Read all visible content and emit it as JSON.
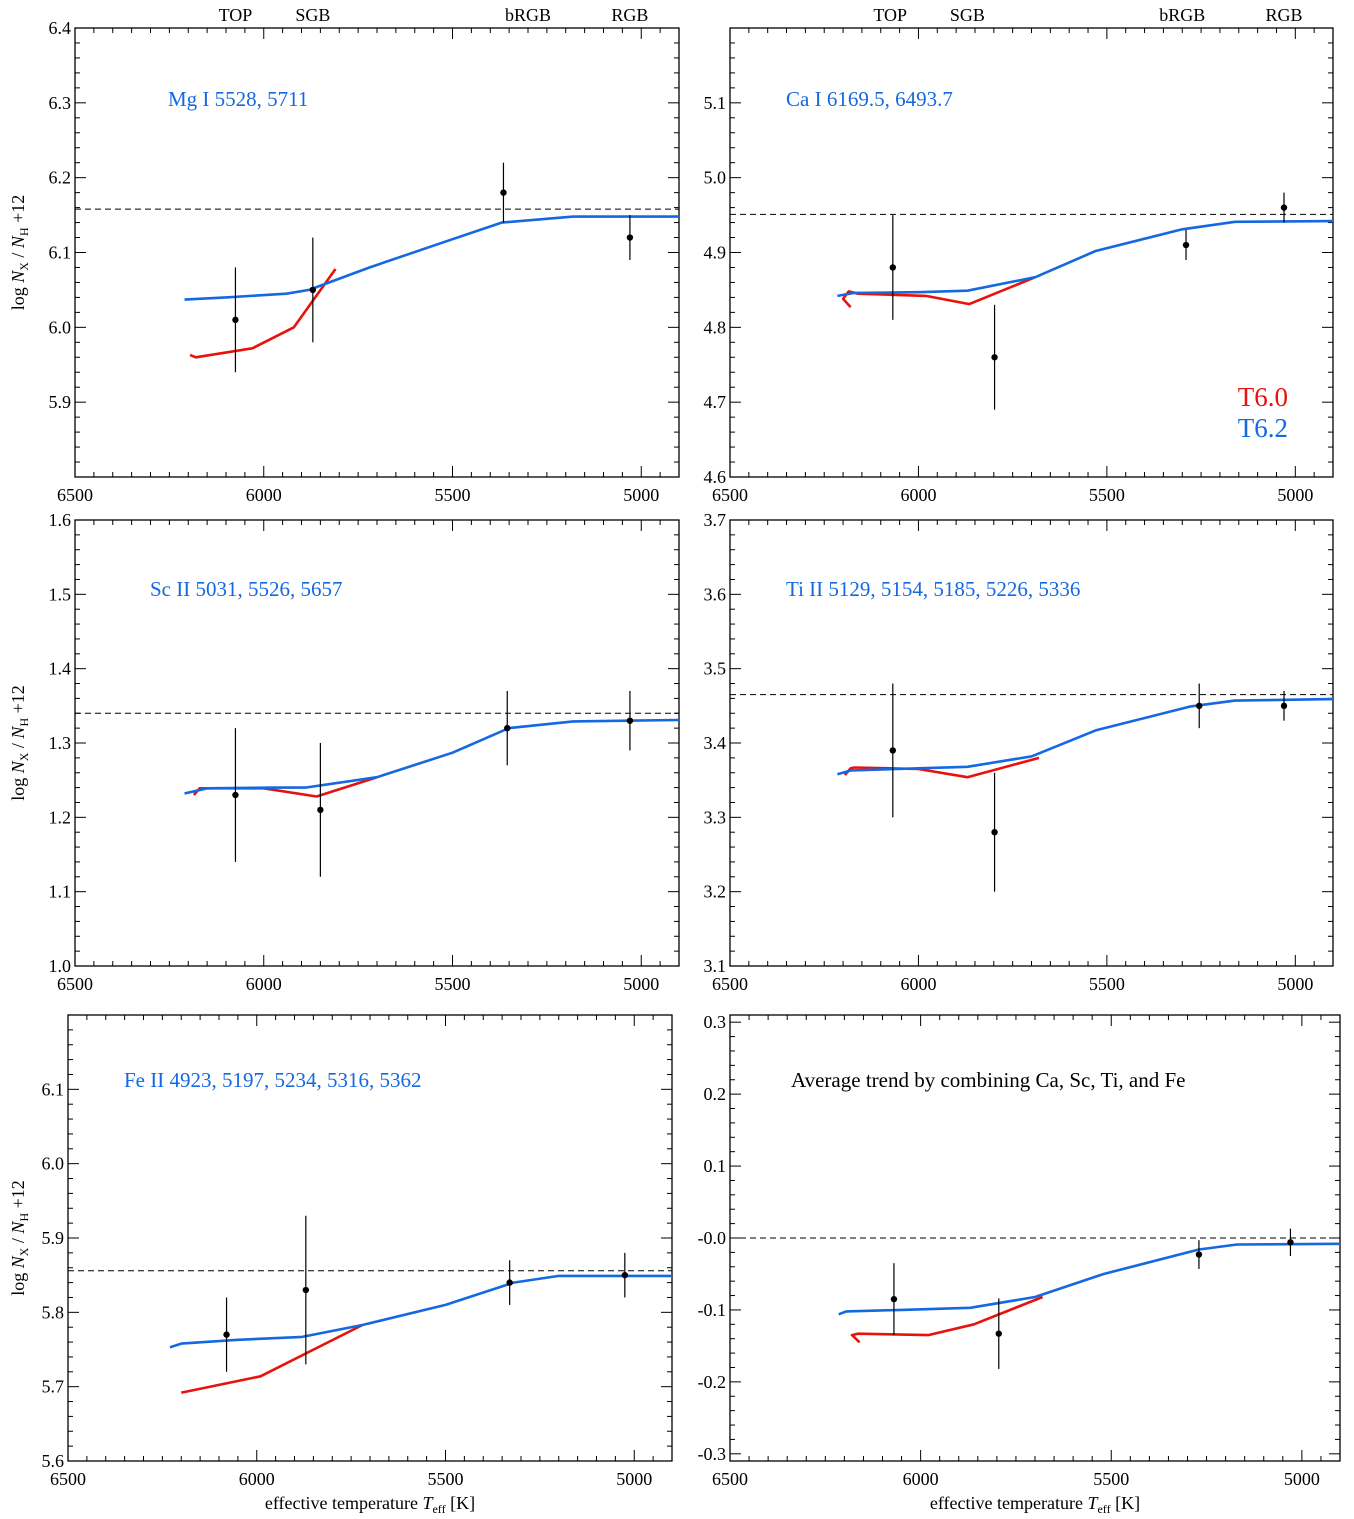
{
  "colors": {
    "red": "#e8120c",
    "blue": "#1468e0",
    "title_blue": "#1468e0",
    "black": "#000000"
  },
  "stage_labels": [
    "TOP",
    "SGB",
    "bRGB",
    "RGB"
  ],
  "xlabel": {
    "main": "effective temperature ",
    "var": "T",
    "sub": "eff",
    "unit": "  [K]"
  },
  "ylabel": {
    "pre": "log ",
    "N": "N",
    "X": "X",
    "slash": " / ",
    "H": "H",
    "post": " +12"
  },
  "legend": [
    {
      "label": "T6.0",
      "color": "#e8120c"
    },
    {
      "label": "T6.2",
      "color": "#1468e0"
    }
  ],
  "chart_data": [
    {
      "type": "line",
      "title": "Mg I 5528, 5711",
      "title_color": "#1468e0",
      "xlim": [
        6500,
        4900
      ],
      "x_ticks": [
        6500,
        6000,
        5500,
        5000
      ],
      "ylim": [
        5.8,
        6.4
      ],
      "y_ticks": [
        5.9,
        6.0,
        6.1,
        6.2,
        6.3,
        6.4
      ],
      "y_tick_labels": [
        "5.9",
        "6.0",
        "6.1",
        "6.2",
        "6.3",
        "6.4"
      ],
      "reference_line": 6.158,
      "show_ylabel": true,
      "series": [
        {
          "color": "#e8120c",
          "x": [
            6195,
            6180,
            6030,
            5920,
            5810
          ],
          "y": [
            5.963,
            5.96,
            5.972,
            6.0,
            6.078
          ]
        },
        {
          "color": "#1468e0",
          "x": [
            6210,
            6100,
            5940,
            5880,
            5720,
            5540,
            5370,
            5180,
            4900
          ],
          "y": [
            6.037,
            6.04,
            6.045,
            6.05,
            6.08,
            6.111,
            6.14,
            6.148,
            6.148
          ]
        }
      ],
      "points": [
        {
          "x": 6075,
          "y": 6.01,
          "err": 0.07
        },
        {
          "x": 5870,
          "y": 6.05,
          "err": 0.07
        },
        {
          "x": 5365,
          "y": 6.18,
          "err": 0.04
        },
        {
          "x": 5030,
          "y": 6.12,
          "err": 0.03
        }
      ]
    },
    {
      "type": "line",
      "title": "Ca I 6169.5, 6493.7",
      "title_color": "#1468e0",
      "xlim": [
        6500,
        4900
      ],
      "x_ticks": [
        6500,
        6000,
        5500,
        5000
      ],
      "ylim": [
        4.6,
        5.2
      ],
      "y_ticks": [
        4.6,
        4.7,
        4.8,
        4.9,
        5.0,
        5.1
      ],
      "y_tick_labels": [
        "4.6",
        "4.7",
        "4.8",
        "4.9",
        "5.0",
        "5.1"
      ],
      "reference_line": 4.951,
      "show_ylabel": false,
      "legend": true,
      "series": [
        {
          "color": "#e8120c",
          "x": [
            6180,
            6200,
            6185,
            6160,
            5980,
            5865,
            5690
          ],
          "y": [
            4.827,
            4.838,
            4.848,
            4.845,
            4.842,
            4.831,
            4.867
          ]
        },
        {
          "color": "#1468e0",
          "x": [
            6215,
            6170,
            6000,
            5870,
            5690,
            5530,
            5300,
            5160,
            4900
          ],
          "y": [
            4.842,
            4.846,
            4.847,
            4.849,
            4.867,
            4.902,
            4.931,
            4.941,
            4.942
          ]
        }
      ],
      "points": [
        {
          "x": 6068,
          "y": 4.88,
          "err": 0.07
        },
        {
          "x": 5798,
          "y": 4.76,
          "err": 0.07
        },
        {
          "x": 5290,
          "y": 4.91,
          "err": 0.02
        },
        {
          "x": 5030,
          "y": 4.96,
          "err": 0.02
        }
      ]
    },
    {
      "type": "line",
      "title": "Sc II 5031, 5526, 5657",
      "title_color": "#1468e0",
      "xlim": [
        6500,
        4900
      ],
      "x_ticks": [
        6500,
        6000,
        5500,
        5000
      ],
      "ylim": [
        1.0,
        1.6
      ],
      "y_ticks": [
        1.0,
        1.1,
        1.2,
        1.3,
        1.4,
        1.5,
        1.6
      ],
      "y_tick_labels": [
        "1.0",
        "1.1",
        "1.2",
        "1.3",
        "1.4",
        "1.5",
        "1.6"
      ],
      "reference_line": 1.34,
      "show_ylabel": true,
      "series": [
        {
          "color": "#e8120c",
          "x": [
            6185,
            6170,
            6000,
            5860,
            5700
          ],
          "y": [
            1.23,
            1.239,
            1.239,
            1.228,
            1.254
          ]
        },
        {
          "color": "#1468e0",
          "x": [
            6210,
            6150,
            5970,
            5890,
            5700,
            5500,
            5350,
            5180,
            4900
          ],
          "y": [
            1.232,
            1.239,
            1.24,
            1.24,
            1.254,
            1.287,
            1.32,
            1.329,
            1.331
          ]
        }
      ],
      "points": [
        {
          "x": 6075,
          "y": 1.23,
          "err": 0.09
        },
        {
          "x": 5850,
          "y": 1.21,
          "err": 0.09
        },
        {
          "x": 5355,
          "y": 1.32,
          "err": 0.05
        },
        {
          "x": 5030,
          "y": 1.33,
          "err": 0.04
        }
      ]
    },
    {
      "type": "line",
      "title": "Ti II 5129, 5154, 5185, 5226, 5336",
      "title_color": "#1468e0",
      "xlim": [
        6500,
        4900
      ],
      "x_ticks": [
        6500,
        6000,
        5500,
        5000
      ],
      "ylim": [
        3.1,
        3.7
      ],
      "y_ticks": [
        3.1,
        3.2,
        3.3,
        3.4,
        3.5,
        3.6,
        3.7
      ],
      "y_tick_labels": [
        "3.1",
        "3.2",
        "3.3",
        "3.4",
        "3.5",
        "3.6",
        "3.7"
      ],
      "reference_line": 3.465,
      "show_ylabel": false,
      "series": [
        {
          "color": "#e8120c",
          "x": [
            6195,
            6180,
            6170,
            6000,
            5870,
            5680
          ],
          "y": [
            3.357,
            3.366,
            3.367,
            3.365,
            3.354,
            3.38
          ]
        },
        {
          "color": "#1468e0",
          "x": [
            6215,
            6180,
            6000,
            5870,
            5700,
            5530,
            5280,
            5160,
            4900
          ],
          "y": [
            3.358,
            3.363,
            3.366,
            3.368,
            3.382,
            3.417,
            3.449,
            3.457,
            3.459
          ]
        }
      ],
      "points": [
        {
          "x": 6068,
          "y": 3.39,
          "err": 0.09
        },
        {
          "x": 5798,
          "y": 3.28,
          "err": 0.08
        },
        {
          "x": 5255,
          "y": 3.45,
          "err": 0.03
        },
        {
          "x": 5030,
          "y": 3.45,
          "err": 0.02
        }
      ]
    },
    {
      "type": "line",
      "title": "Fe II 4923, 5197, 5234, 5316, 5362",
      "title_color": "#1468e0",
      "xlim": [
        6500,
        4900
      ],
      "x_ticks": [
        6500,
        6000,
        5500,
        5000
      ],
      "ylim": [
        5.6,
        6.2
      ],
      "y_ticks": [
        5.6,
        5.7,
        5.8,
        5.9,
        6.0,
        6.1
      ],
      "y_tick_labels": [
        "5.6",
        "5.7",
        "5.8",
        "5.9",
        "6.0",
        "6.1"
      ],
      "reference_line": 5.856,
      "show_ylabel": true,
      "series": [
        {
          "color": "#e8120c",
          "x": [
            6200,
            6180,
            5990,
            5720
          ],
          "y": [
            5.692,
            5.694,
            5.714,
            5.783
          ]
        },
        {
          "color": "#1468e0",
          "x": [
            6230,
            6200,
            6050,
            5880,
            5720,
            5500,
            5320,
            5200,
            4900
          ],
          "y": [
            5.753,
            5.758,
            5.763,
            5.767,
            5.783,
            5.81,
            5.84,
            5.849,
            5.849
          ]
        }
      ],
      "points": [
        {
          "x": 6080,
          "y": 5.77,
          "err": 0.05
        },
        {
          "x": 5870,
          "y": 5.83,
          "err": 0.1
        },
        {
          "x": 5330,
          "y": 5.84,
          "err": 0.03
        },
        {
          "x": 5025,
          "y": 5.85,
          "err": 0.03
        }
      ]
    },
    {
      "type": "line",
      "title": "Average trend by combining Ca, Sc, Ti, and Fe",
      "title_color": "#000000",
      "xlim": [
        6500,
        4900
      ],
      "x_ticks": [
        6500,
        6000,
        5500,
        5000
      ],
      "ylim": [
        -0.31,
        0.31
      ],
      "y_ticks": [
        -0.3,
        -0.2,
        -0.1,
        0.0,
        0.1,
        0.2,
        0.3
      ],
      "y_tick_labels": [
        "-0.3",
        "-0.2",
        "-0.1",
        "-0.0",
        "0.1",
        "0.2",
        "0.3"
      ],
      "reference_line": 0.0,
      "show_ylabel": false,
      "series": [
        {
          "color": "#e8120c",
          "x": [
            6160,
            6180,
            6165,
            5980,
            5860,
            5680
          ],
          "y": [
            -0.145,
            -0.135,
            -0.133,
            -0.135,
            -0.12,
            -0.082
          ]
        },
        {
          "color": "#1468e0",
          "x": [
            6215,
            6195,
            6050,
            5870,
            5700,
            5520,
            5270,
            5170,
            4900
          ],
          "y": [
            -0.106,
            -0.102,
            -0.1,
            -0.097,
            -0.082,
            -0.05,
            -0.016,
            -0.009,
            -0.008
          ]
        }
      ],
      "points": [
        {
          "x": 6070,
          "y": -0.085,
          "err": 0.05
        },
        {
          "x": 5795,
          "y": -0.133,
          "err": 0.049
        },
        {
          "x": 5270,
          "y": -0.023,
          "err": 0.02
        },
        {
          "x": 5030,
          "y": -0.006,
          "err": 0.019
        }
      ]
    }
  ]
}
